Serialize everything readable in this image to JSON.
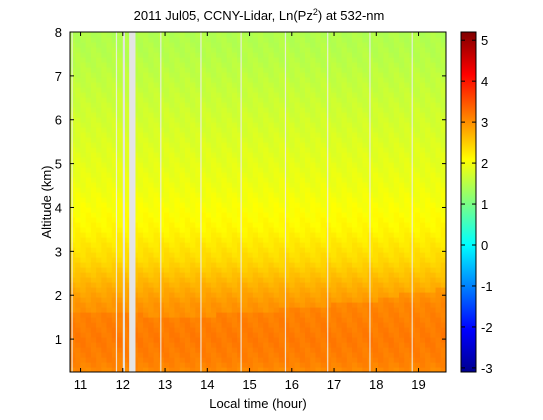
{
  "chart_data": {
    "type": "heatmap",
    "title": "2011 Jul05, CCNY-Lidar, Ln(Pz",
    "title_sup": "2",
    "title_suffix": ") at 532-nm",
    "xlabel": "Local time (hour)",
    "ylabel": "Altitude (km)",
    "xlim": [
      10.75,
      19.65
    ],
    "ylim": [
      0.25,
      8.0
    ],
    "xticks": [
      "11",
      "12",
      "13",
      "14",
      "15",
      "16",
      "17",
      "18",
      "19"
    ],
    "yticks": [
      "1",
      "2",
      "3",
      "4",
      "5",
      "6",
      "7",
      "8"
    ],
    "colorbar": {
      "range": [
        -3.1,
        5.2
      ],
      "ticks": [
        "5",
        "4",
        "3",
        "2",
        "1",
        "0",
        "-1",
        "-2",
        "-3"
      ],
      "colormap": "jet"
    },
    "field": {
      "description_profile_altitude_km": [
        0.25,
        0.5,
        1.0,
        1.5,
        1.8,
        2.2,
        2.8,
        3.5,
        4.5,
        5.5,
        6.5,
        7.5,
        8.0
      ],
      "description_profile_value": [
        2.9,
        3.0,
        3.05,
        3.0,
        2.95,
        2.75,
        2.4,
        2.15,
        1.95,
        1.8,
        1.65,
        1.5,
        1.45
      ],
      "boundary_layer_top_km": {
        "x": [
          10.75,
          12,
          13,
          14,
          15,
          16,
          17,
          18,
          19,
          19.65
        ],
        "y": [
          1.6,
          1.65,
          1.45,
          1.55,
          1.6,
          1.7,
          1.8,
          1.9,
          2.1,
          2.15
        ]
      }
    },
    "data_gaps_hours": [
      [
        12.0,
        12.05
      ],
      [
        12.15,
        12.3
      ]
    ],
    "grid": false
  }
}
